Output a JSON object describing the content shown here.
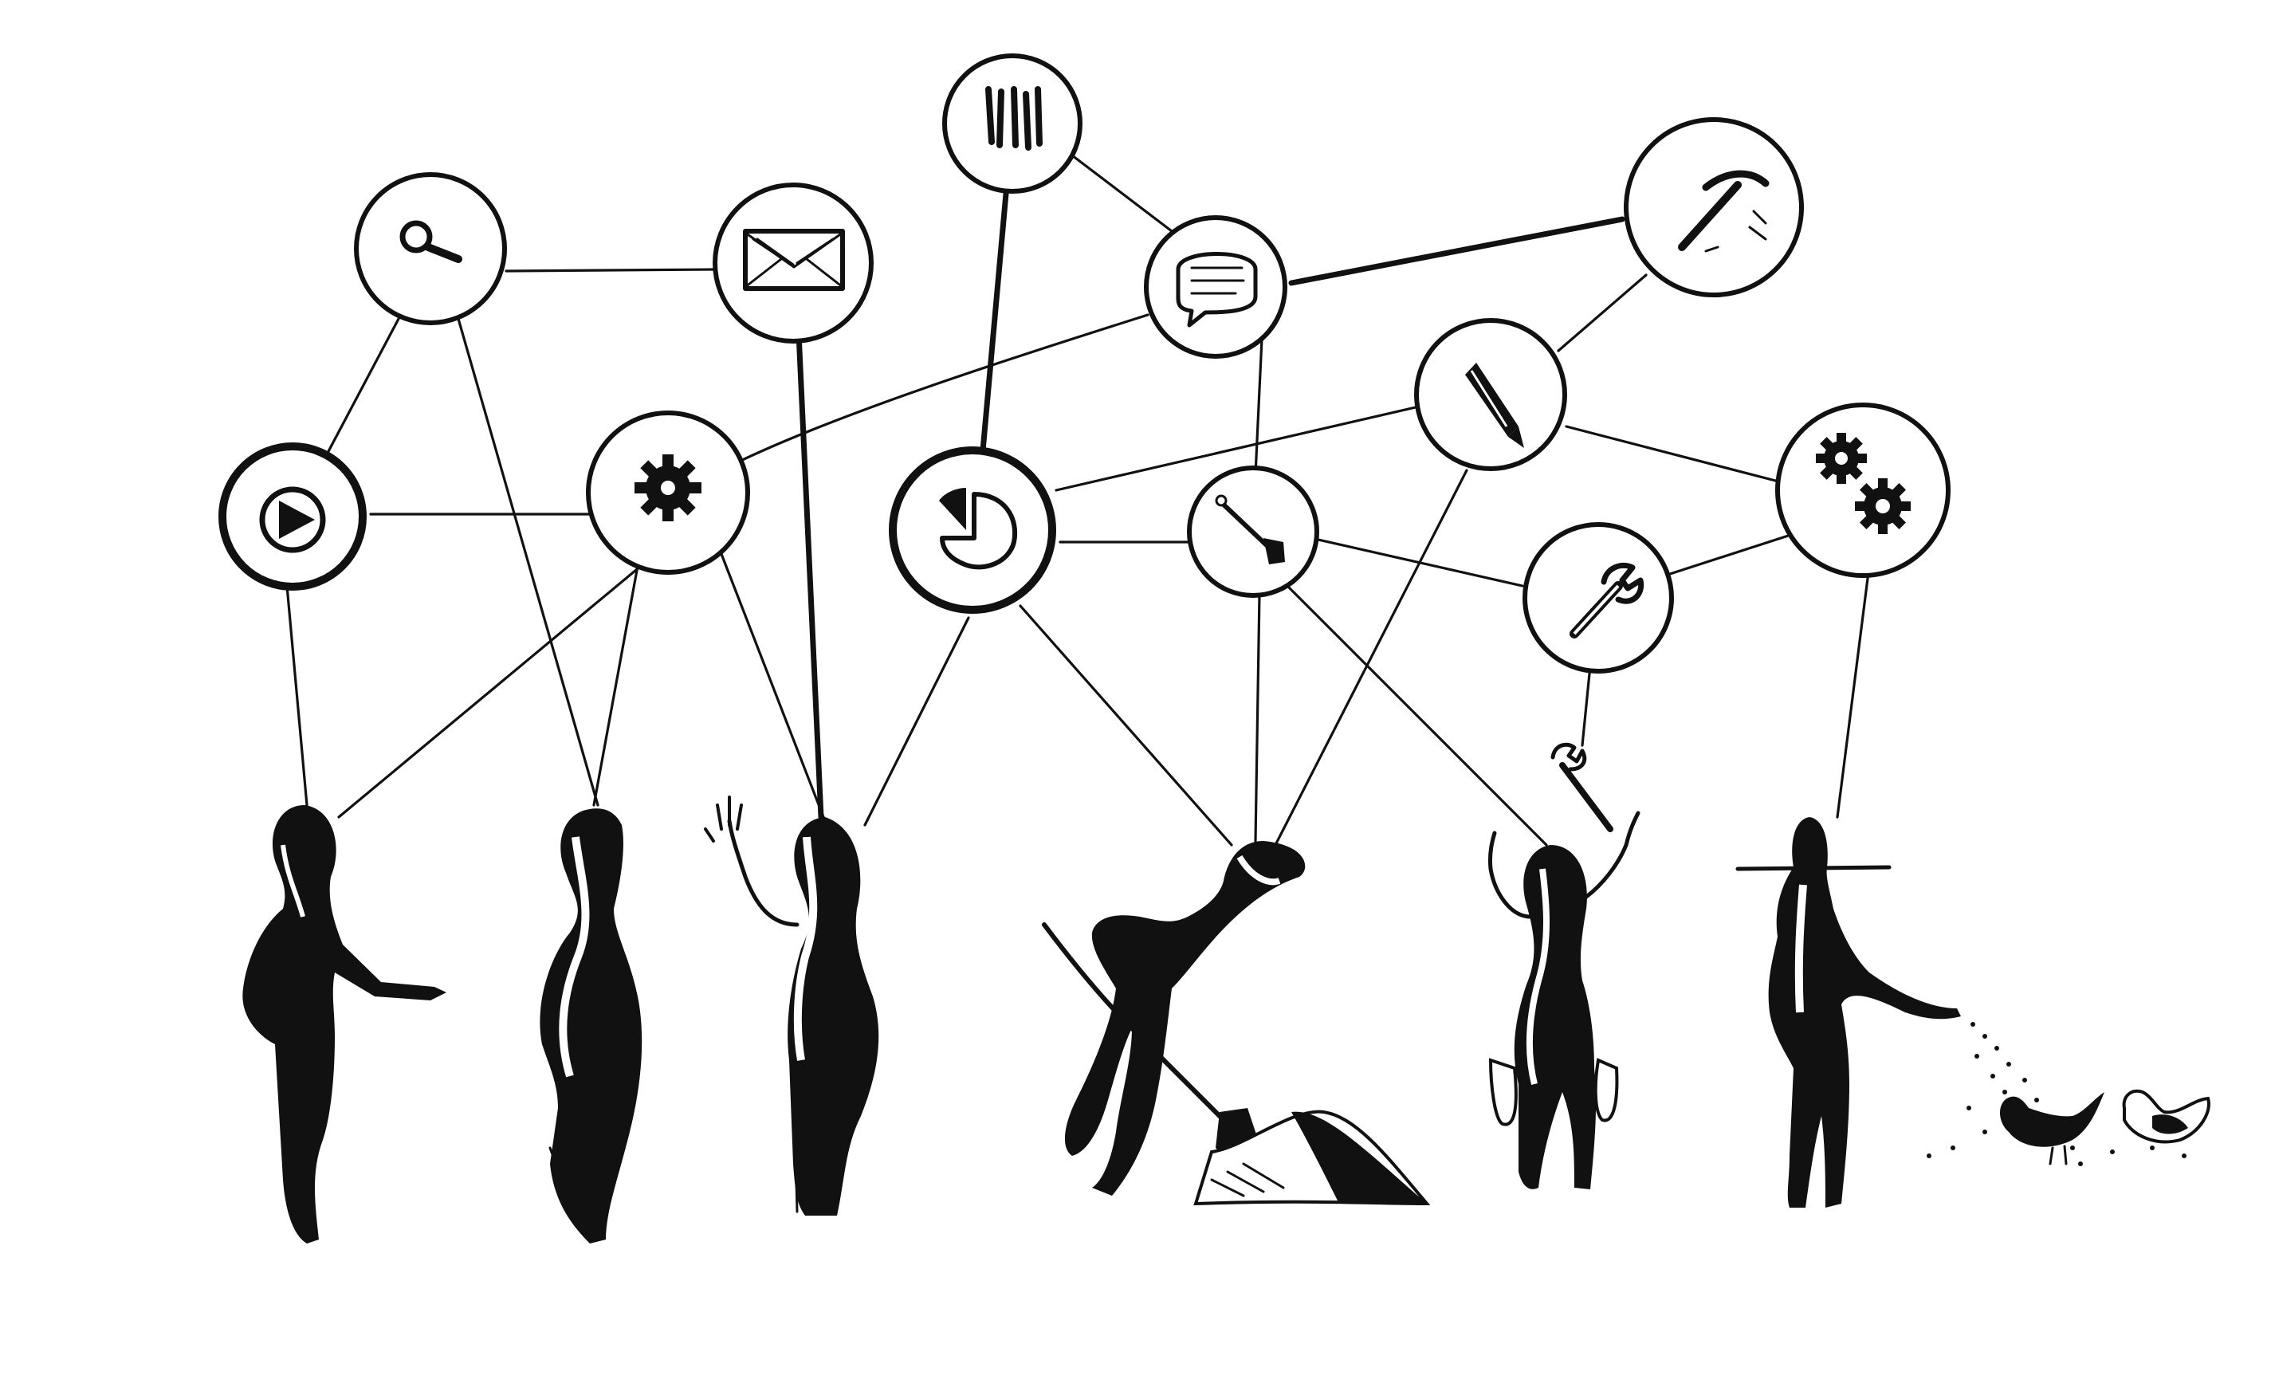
{
  "illustration": {
    "nodes": [
      {
        "id": "search",
        "icon": "search-icon"
      },
      {
        "id": "mail",
        "icon": "envelope-icon"
      },
      {
        "id": "books",
        "icon": "books-icon"
      },
      {
        "id": "chat",
        "icon": "chat-bubble-icon"
      },
      {
        "id": "pickaxe",
        "icon": "pickaxe-icon"
      },
      {
        "id": "play",
        "icon": "play-icon"
      },
      {
        "id": "gear",
        "icon": "gear-icon"
      },
      {
        "id": "piechart",
        "icon": "pie-chart-icon"
      },
      {
        "id": "shovel",
        "icon": "shovel-icon"
      },
      {
        "id": "pencil",
        "icon": "pencil-icon"
      },
      {
        "id": "wrench",
        "icon": "wrench-icon"
      },
      {
        "id": "gears",
        "icon": "gears-icon"
      }
    ],
    "people": [
      {
        "id": "presenter",
        "pose": "pointing"
      },
      {
        "id": "standing",
        "pose": "standing"
      },
      {
        "id": "waving",
        "pose": "waving"
      },
      {
        "id": "digger",
        "pose": "digging"
      },
      {
        "id": "gardener",
        "pose": "holding-wrench"
      },
      {
        "id": "farmer",
        "pose": "feeding-chickens"
      }
    ],
    "colors": {
      "ink": "#111111",
      "paper": "#ffffff"
    }
  }
}
